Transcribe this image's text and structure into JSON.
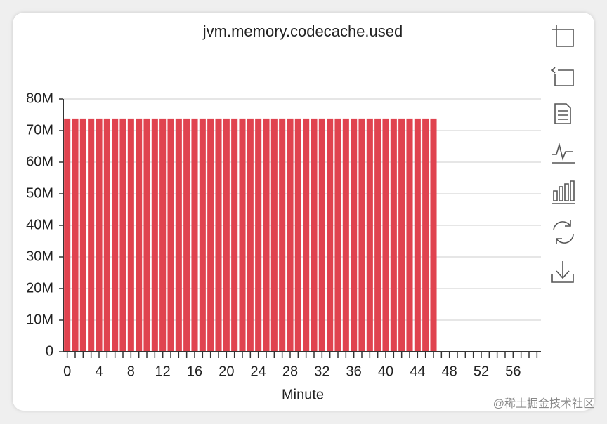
{
  "chart_data": {
    "type": "bar",
    "title": "jvm.memory.codecache.used",
    "x_label": "Minute",
    "categories": [
      "0",
      null,
      null,
      null,
      "4",
      null,
      null,
      null,
      "8",
      null,
      null,
      null,
      "12",
      null,
      null,
      null,
      "16",
      null,
      null,
      null,
      "20",
      null,
      null,
      null,
      "24",
      null,
      null,
      null,
      "28",
      null,
      null,
      null,
      "32",
      null,
      null,
      null,
      "36",
      null,
      null,
      null,
      "40",
      null,
      null,
      null,
      "44",
      null,
      null,
      null,
      "48",
      null,
      null,
      null,
      "52",
      null,
      null,
      null,
      "56",
      null,
      null,
      null
    ],
    "values": [
      73800000,
      73800000,
      73800000,
      73800000,
      73800000,
      73800000,
      73800000,
      73800000,
      73800000,
      73800000,
      73800000,
      73800000,
      73800000,
      73800000,
      73800000,
      73800000,
      73800000,
      73800000,
      73800000,
      73800000,
      73800000,
      73800000,
      73800000,
      73800000,
      73800000,
      73800000,
      73800000,
      73800000,
      73800000,
      73800000,
      73800000,
      73800000,
      73800000,
      73800000,
      73800000,
      73800000,
      73800000,
      73800000,
      73800000,
      73800000,
      73800000,
      73800000,
      73800000,
      73800000,
      73800000,
      73800000,
      73800000,
      null,
      null,
      null,
      null,
      null,
      null,
      null,
      null,
      null,
      null,
      null,
      null,
      null
    ],
    "color": "#e0434f",
    "ylim": [
      0,
      80000000
    ],
    "yticks": [
      0,
      {
        "value": 10000000,
        "label": "10M"
      },
      {
        "value": 20000000,
        "label": "20M"
      },
      {
        "value": 30000000,
        "label": "30M"
      },
      {
        "value": 40000000,
        "label": "40M"
      },
      {
        "value": 50000000,
        "label": "50M"
      },
      {
        "value": 60000000,
        "label": "60M"
      },
      {
        "value": 70000000,
        "label": "70M"
      },
      {
        "value": 80000000,
        "label": "80M"
      }
    ],
    "grid": true
  },
  "watermark": "@稀土掘金技术社区"
}
